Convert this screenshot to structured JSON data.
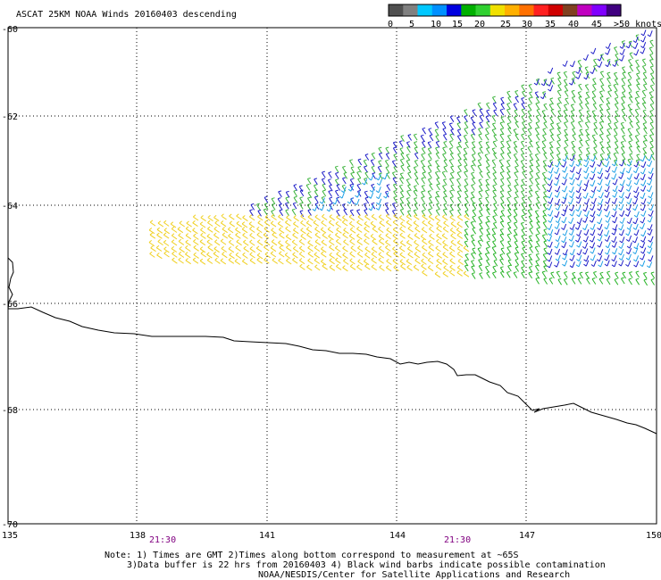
{
  "title": "ASCAT 25KM NOAA Winds 20160403 descending",
  "legend": {
    "colors": [
      "#505050",
      "#808080",
      "#00c8ff",
      "#0090ff",
      "#0000e0",
      "#00b000",
      "#30d030",
      "#f0e000",
      "#ffb000",
      "#ff7000",
      "#ff2020",
      "#d00000",
      "#804020",
      "#c000c0",
      "#8000ff",
      "#400080"
    ],
    "labels": [
      "0",
      "5",
      "10",
      "15",
      "20",
      "25",
      "30",
      "35",
      "40",
      "45",
      ">50 knots"
    ]
  },
  "y_axis": {
    "ticks": [
      "-60",
      "-62",
      "-64",
      "-66",
      "-68",
      "-70"
    ]
  },
  "x_axis": {
    "ticks": [
      "135",
      "138",
      "141",
      "144",
      "147",
      "150"
    ]
  },
  "time_labels": [
    "21:30",
    "21:30"
  ],
  "notes": [
    "Note: 1) Times are GMT 2)Times along bottom correspond to measurement at ~65S",
    "3)Data buffer is 22 hrs from 20160403 4) Black wind barbs indicate possible contamination",
    "NOAA/NESDIS/Center for Satellite Applications and Research"
  ],
  "swath": {
    "band_colors": {
      "slow": "#f0d020",
      "mid": "#3cb43c",
      "fast": "#1e1ec8",
      "light": "#1ea0e6",
      "green": "#28b428"
    }
  }
}
